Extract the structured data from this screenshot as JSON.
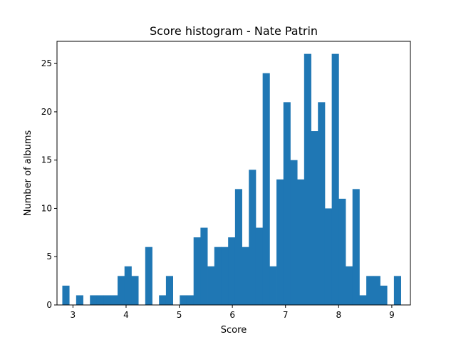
{
  "chart_data": {
    "type": "bar",
    "title": "Score histogram - Nate Patrin",
    "xlabel": "Score",
    "ylabel": "Number of albums",
    "xlim": [
      2.7,
      9.35
    ],
    "ylim": [
      0,
      27.3
    ],
    "xticks": [
      3,
      4,
      5,
      6,
      7,
      8,
      9
    ],
    "yticks": [
      0,
      5,
      10,
      15,
      20,
      25
    ],
    "grid": false,
    "color": "#1f77b4",
    "bin_start": 2.8,
    "bin_width": 0.13,
    "counts": [
      2,
      0,
      1,
      0,
      1,
      1,
      1,
      1,
      3,
      4,
      3,
      0,
      6,
      0,
      1,
      3,
      0,
      1,
      1,
      7,
      8,
      4,
      6,
      6,
      7,
      12,
      6,
      14,
      8,
      24,
      4,
      13,
      21,
      15,
      13,
      26,
      18,
      21,
      10,
      26,
      11,
      4,
      12,
      1,
      3,
      3,
      2,
      0,
      3
    ]
  }
}
